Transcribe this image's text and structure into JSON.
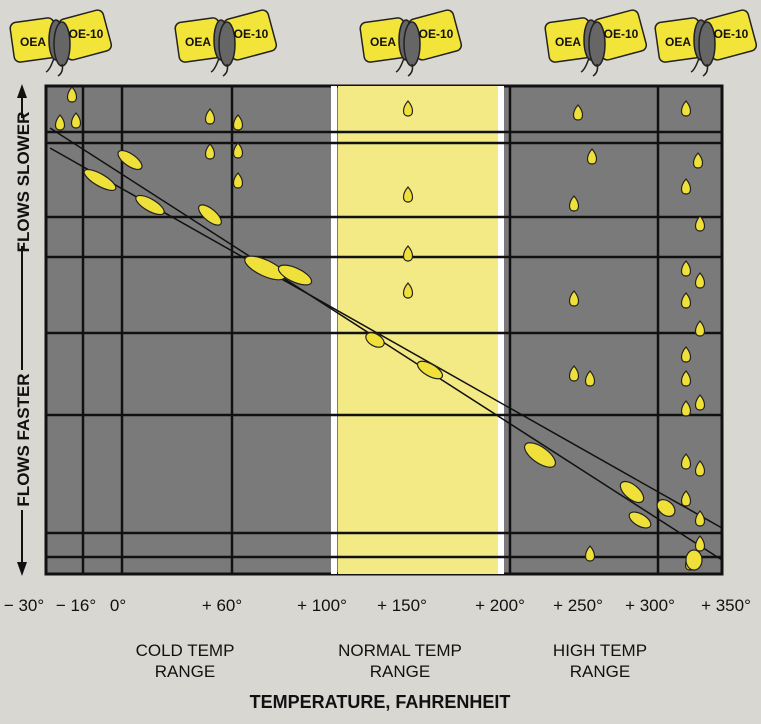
{
  "cans": [
    {
      "left": "OEA",
      "right": "OE-10"
    },
    {
      "left": "OEA",
      "right": "OE-10"
    },
    {
      "left": "OEA",
      "right": "OE-10"
    },
    {
      "left": "OEA",
      "right": "OE-10"
    },
    {
      "left": "OEA",
      "right": "OE-10"
    }
  ],
  "y_labels": {
    "top": "FLOWS SLOWER",
    "bottom": "FLOWS FASTER"
  },
  "x_ticks": [
    "− 30°",
    "− 16°",
    "0°",
    "+ 60°",
    "+ 100°",
    "+ 150°",
    "+ 200°",
    "+ 250°",
    "+ 300°",
    "+ 350°"
  ],
  "ranges": [
    {
      "line1": "COLD TEMP",
      "line2": "RANGE"
    },
    {
      "line1": "NORMAL TEMP",
      "line2": "RANGE"
    },
    {
      "line1": "HIGH TEMP",
      "line2": "RANGE"
    }
  ],
  "x_title": "TEMPERATURE, FAHRENHEIT"
}
